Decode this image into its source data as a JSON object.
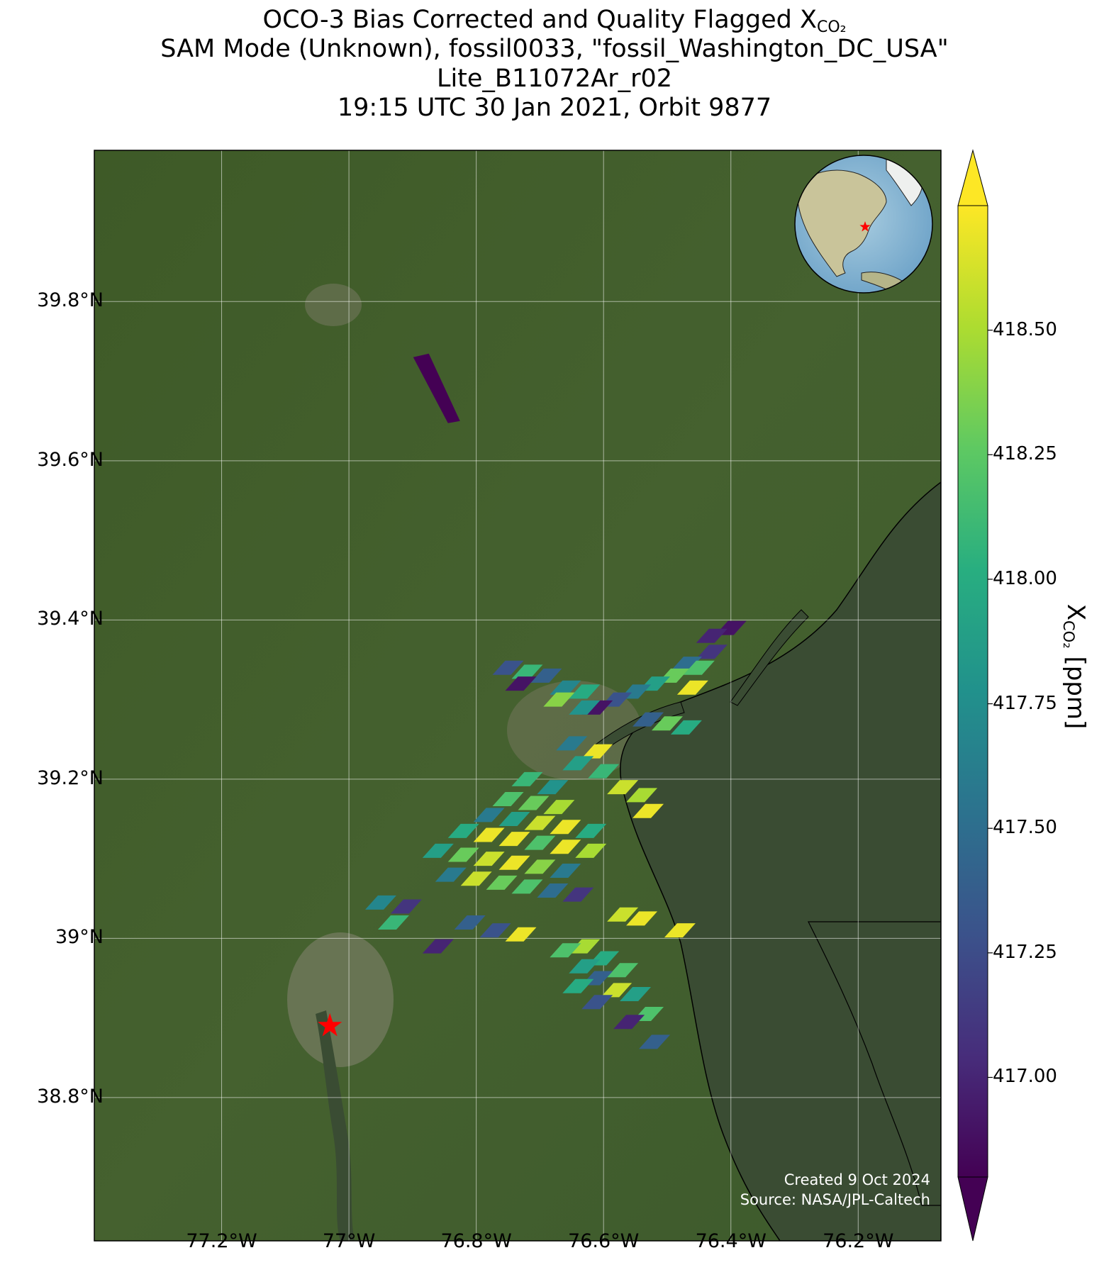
{
  "title": {
    "line1": "OCO-3 Bias Corrected and Quality Flagged X",
    "line1_sub": "CO₂",
    "line2": "SAM Mode (Unknown), fossil0033, \"fossil_Washington_DC_USA\"",
    "line3": "Lite_B11072Ar_r02",
    "line4": "19:15 UTC 30 Jan 2021, Orbit 9877"
  },
  "map": {
    "lat_range": [
      38.62,
      39.99
    ],
    "lon_range": [
      -77.4,
      -76.07
    ],
    "lat_ticks": [
      {
        "value": 39.8,
        "label": "39.8°N"
      },
      {
        "value": 39.6,
        "label": "39.6°N"
      },
      {
        "value": 39.4,
        "label": "39.4°N"
      },
      {
        "value": 39.2,
        "label": "39.2°N"
      },
      {
        "value": 39.0,
        "label": "39°N"
      },
      {
        "value": 38.8,
        "label": "38.8°N"
      }
    ],
    "lon_ticks": [
      {
        "value": -77.2,
        "label": "77.2°W"
      },
      {
        "value": -77.0,
        "label": "77°W"
      },
      {
        "value": -76.8,
        "label": "76.8°W"
      },
      {
        "value": -76.6,
        "label": "76.6°W"
      },
      {
        "value": -76.4,
        "label": "76.4°W"
      },
      {
        "value": -76.2,
        "label": "76.2°W"
      }
    ],
    "target_marker": {
      "lat": 38.89,
      "lon": -77.03,
      "color": "#ff0000"
    },
    "basemap_colors": {
      "land": "#3f5a2c",
      "water": "#3b4a34"
    },
    "credit_line1": "Created 9 Oct 2024",
    "credit_line2": "Source: NASA/JPL-Caltech",
    "inset_globe": {
      "center_lat": 30,
      "center_lon": -80,
      "marker_color": "#ff0000"
    }
  },
  "colorbar": {
    "label": "X",
    "label_sub": "CO₂",
    "label_unit": " [ppm]",
    "min": 416.8,
    "max": 418.75,
    "extend": "both",
    "colormap": "viridis",
    "ticks": [
      "417.00",
      "417.25",
      "417.50",
      "417.75",
      "418.00",
      "418.25",
      "418.50"
    ]
  },
  "soundings": [
    {
      "lat": 39.69,
      "lon": -76.85,
      "xco2": 416.8
    },
    {
      "lat": 39.39,
      "lon": -76.4,
      "xco2": 416.9
    },
    {
      "lat": 39.38,
      "lon": -76.43,
      "xco2": 417.0
    },
    {
      "lat": 39.36,
      "lon": -76.43,
      "xco2": 417.1
    },
    {
      "lat": 39.345,
      "lon": -76.47,
      "xco2": 417.5
    },
    {
      "lat": 39.34,
      "lon": -76.45,
      "xco2": 418.2
    },
    {
      "lat": 39.33,
      "lon": -76.49,
      "xco2": 418.3
    },
    {
      "lat": 39.32,
      "lon": -76.52,
      "xco2": 417.9
    },
    {
      "lat": 39.315,
      "lon": -76.46,
      "xco2": 418.7
    },
    {
      "lat": 39.31,
      "lon": -76.55,
      "xco2": 417.6
    },
    {
      "lat": 39.3,
      "lon": -76.58,
      "xco2": 417.3
    },
    {
      "lat": 39.29,
      "lon": -76.61,
      "xco2": 416.9
    },
    {
      "lat": 39.34,
      "lon": -76.75,
      "xco2": 417.3
    },
    {
      "lat": 39.335,
      "lon": -76.72,
      "xco2": 418.1
    },
    {
      "lat": 39.33,
      "lon": -76.69,
      "xco2": 417.4
    },
    {
      "lat": 39.32,
      "lon": -76.73,
      "xco2": 416.9
    },
    {
      "lat": 39.315,
      "lon": -76.66,
      "xco2": 417.7
    },
    {
      "lat": 39.31,
      "lon": -76.63,
      "xco2": 418.0
    },
    {
      "lat": 39.3,
      "lon": -76.67,
      "xco2": 418.4
    },
    {
      "lat": 39.29,
      "lon": -76.63,
      "xco2": 417.8
    },
    {
      "lat": 39.275,
      "lon": -76.53,
      "xco2": 417.4
    },
    {
      "lat": 39.27,
      "lon": -76.5,
      "xco2": 418.3
    },
    {
      "lat": 39.265,
      "lon": -76.47,
      "xco2": 418.0
    },
    {
      "lat": 39.245,
      "lon": -76.65,
      "xco2": 417.6
    },
    {
      "lat": 39.235,
      "lon": -76.61,
      "xco2": 418.7
    },
    {
      "lat": 39.22,
      "lon": -76.64,
      "xco2": 417.9
    },
    {
      "lat": 39.21,
      "lon": -76.6,
      "xco2": 418.1
    },
    {
      "lat": 39.2,
      "lon": -76.72,
      "xco2": 418.1
    },
    {
      "lat": 39.19,
      "lon": -76.68,
      "xco2": 417.8
    },
    {
      "lat": 39.19,
      "lon": -76.57,
      "xco2": 418.6
    },
    {
      "lat": 39.18,
      "lon": -76.54,
      "xco2": 418.5
    },
    {
      "lat": 39.175,
      "lon": -76.75,
      "xco2": 418.2
    },
    {
      "lat": 39.17,
      "lon": -76.71,
      "xco2": 418.3
    },
    {
      "lat": 39.165,
      "lon": -76.67,
      "xco2": 418.5
    },
    {
      "lat": 39.16,
      "lon": -76.53,
      "xco2": 418.7
    },
    {
      "lat": 39.155,
      "lon": -76.78,
      "xco2": 417.6
    },
    {
      "lat": 39.15,
      "lon": -76.74,
      "xco2": 417.9
    },
    {
      "lat": 39.145,
      "lon": -76.7,
      "xco2": 418.6
    },
    {
      "lat": 39.14,
      "lon": -76.66,
      "xco2": 418.7
    },
    {
      "lat": 39.135,
      "lon": -76.62,
      "xco2": 418.0
    },
    {
      "lat": 39.135,
      "lon": -76.82,
      "xco2": 418.0
    },
    {
      "lat": 39.13,
      "lon": -76.78,
      "xco2": 418.7
    },
    {
      "lat": 39.125,
      "lon": -76.74,
      "xco2": 418.7
    },
    {
      "lat": 39.12,
      "lon": -76.7,
      "xco2": 418.2
    },
    {
      "lat": 39.115,
      "lon": -76.66,
      "xco2": 418.7
    },
    {
      "lat": 39.11,
      "lon": -76.62,
      "xco2": 418.5
    },
    {
      "lat": 39.11,
      "lon": -76.86,
      "xco2": 417.9
    },
    {
      "lat": 39.105,
      "lon": -76.82,
      "xco2": 418.3
    },
    {
      "lat": 39.1,
      "lon": -76.78,
      "xco2": 418.6
    },
    {
      "lat": 39.095,
      "lon": -76.74,
      "xco2": 418.7
    },
    {
      "lat": 39.09,
      "lon": -76.7,
      "xco2": 418.4
    },
    {
      "lat": 39.085,
      "lon": -76.66,
      "xco2": 417.6
    },
    {
      "lat": 39.08,
      "lon": -76.84,
      "xco2": 417.6
    },
    {
      "lat": 39.075,
      "lon": -76.8,
      "xco2": 418.6
    },
    {
      "lat": 39.07,
      "lon": -76.76,
      "xco2": 418.3
    },
    {
      "lat": 39.065,
      "lon": -76.72,
      "xco2": 418.2
    },
    {
      "lat": 39.06,
      "lon": -76.68,
      "xco2": 417.5
    },
    {
      "lat": 39.055,
      "lon": -76.64,
      "xco2": 417.1
    },
    {
      "lat": 39.045,
      "lon": -76.95,
      "xco2": 417.7
    },
    {
      "lat": 39.04,
      "lon": -76.91,
      "xco2": 417.1
    },
    {
      "lat": 39.02,
      "lon": -76.93,
      "xco2": 418.1
    },
    {
      "lat": 39.02,
      "lon": -76.81,
      "xco2": 417.4
    },
    {
      "lat": 39.01,
      "lon": -76.77,
      "xco2": 417.3
    },
    {
      "lat": 39.005,
      "lon": -76.73,
      "xco2": 418.7
    },
    {
      "lat": 38.99,
      "lon": -76.86,
      "xco2": 417.0
    },
    {
      "lat": 39.03,
      "lon": -76.57,
      "xco2": 418.6
    },
    {
      "lat": 39.025,
      "lon": -76.54,
      "xco2": 418.7
    },
    {
      "lat": 39.01,
      "lon": -76.48,
      "xco2": 418.7
    },
    {
      "lat": 38.99,
      "lon": -76.63,
      "xco2": 418.5
    },
    {
      "lat": 38.985,
      "lon": -76.66,
      "xco2": 418.2
    },
    {
      "lat": 38.975,
      "lon": -76.6,
      "xco2": 418.0
    },
    {
      "lat": 38.965,
      "lon": -76.63,
      "xco2": 417.9
    },
    {
      "lat": 38.96,
      "lon": -76.57,
      "xco2": 418.2
    },
    {
      "lat": 38.95,
      "lon": -76.61,
      "xco2": 417.4
    },
    {
      "lat": 38.94,
      "lon": -76.64,
      "xco2": 418.0
    },
    {
      "lat": 38.935,
      "lon": -76.58,
      "xco2": 418.6
    },
    {
      "lat": 38.93,
      "lon": -76.55,
      "xco2": 417.9
    },
    {
      "lat": 38.92,
      "lon": -76.61,
      "xco2": 417.3
    },
    {
      "lat": 38.905,
      "lon": -76.53,
      "xco2": 418.2
    },
    {
      "lat": 38.895,
      "lon": -76.56,
      "xco2": 417.0
    },
    {
      "lat": 38.87,
      "lon": -76.52,
      "xco2": 417.4
    }
  ]
}
